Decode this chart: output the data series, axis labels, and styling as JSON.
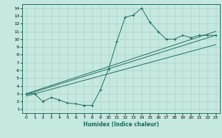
{
  "title": "",
  "xlabel": "Humidex (Indice chaleur)",
  "ylabel": "",
  "bg_color": "#c5e8e0",
  "line_color": "#1a6b5a",
  "grid_color": "#b0d8ce",
  "xlim": [
    -0.5,
    23.5
  ],
  "ylim": [
    0.5,
    14.5
  ],
  "xticks": [
    0,
    1,
    2,
    3,
    4,
    5,
    6,
    7,
    8,
    9,
    10,
    11,
    12,
    13,
    14,
    15,
    16,
    17,
    18,
    19,
    20,
    21,
    22,
    23
  ],
  "yticks": [
    1,
    2,
    3,
    4,
    5,
    6,
    7,
    8,
    9,
    10,
    11,
    12,
    13,
    14
  ],
  "curve_x": [
    0,
    1,
    2,
    3,
    4,
    5,
    6,
    7,
    8,
    9,
    10,
    11,
    12,
    13,
    14,
    15,
    16,
    17,
    18,
    19,
    20,
    21,
    22,
    23
  ],
  "curve_y": [
    3,
    3,
    2,
    2.5,
    2.2,
    1.8,
    1.7,
    1.5,
    1.5,
    3.5,
    6.2,
    9.7,
    12.8,
    13.1,
    14.0,
    12.2,
    11.0,
    10.0,
    10.0,
    10.5,
    10.2,
    10.5,
    10.5,
    10.5
  ],
  "line1_x": [
    0,
    23
  ],
  "line1_y": [
    3.0,
    11.0
  ],
  "line2_x": [
    0,
    23
  ],
  "line2_y": [
    2.9,
    10.5
  ],
  "line3_x": [
    0,
    23
  ],
  "line3_y": [
    2.7,
    9.3
  ]
}
